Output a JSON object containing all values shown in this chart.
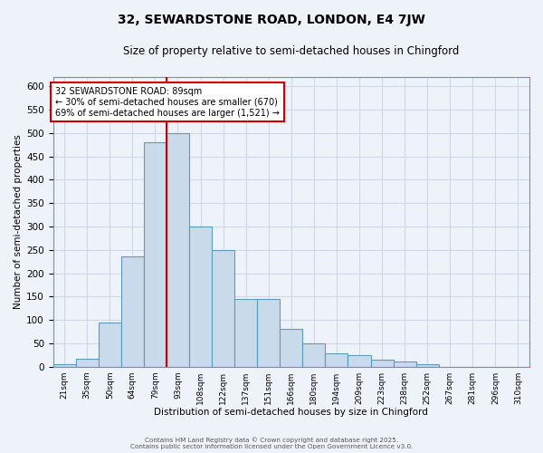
{
  "title": "32, SEWARDSTONE ROAD, LONDON, E4 7JW",
  "subtitle": "Size of property relative to semi-detached houses in Chingford",
  "xlabel": "Distribution of semi-detached houses by size in Chingford",
  "ylabel": "Number of semi-detached properties",
  "bin_labels": [
    "21sqm",
    "35sqm",
    "50sqm",
    "64sqm",
    "79sqm",
    "93sqm",
    "108sqm",
    "122sqm",
    "137sqm",
    "151sqm",
    "166sqm",
    "180sqm",
    "194sqm",
    "209sqm",
    "223sqm",
    "238sqm",
    "252sqm",
    "267sqm",
    "281sqm",
    "296sqm",
    "310sqm"
  ],
  "bar_heights": [
    5,
    17,
    95,
    235,
    480,
    500,
    300,
    250,
    145,
    145,
    80,
    50,
    28,
    25,
    15,
    10,
    5,
    0,
    0,
    0,
    0
  ],
  "bar_color": "#c9daea",
  "bar_edge_color": "#5b9cbd",
  "background_color": "#eef2f9",
  "grid_color": "#d0d8e8",
  "vline_color": "#cc0000",
  "annotation_text": "32 SEWARDSTONE ROAD: 89sqm\n← 30% of semi-detached houses are smaller (670)\n69% of semi-detached houses are larger (1,521) →",
  "annotation_box_edge": "#cc0000",
  "ylim": [
    0,
    620
  ],
  "yticks": [
    0,
    50,
    100,
    150,
    200,
    250,
    300,
    350,
    400,
    450,
    500,
    550,
    600
  ],
  "footnote1": "Contains HM Land Registry data © Crown copyright and database right 2025.",
  "footnote2": "Contains public sector information licensed under the Open Government Licence v3.0.",
  "title_fontsize": 10,
  "subtitle_fontsize": 8.5,
  "vline_bin_index": 5
}
